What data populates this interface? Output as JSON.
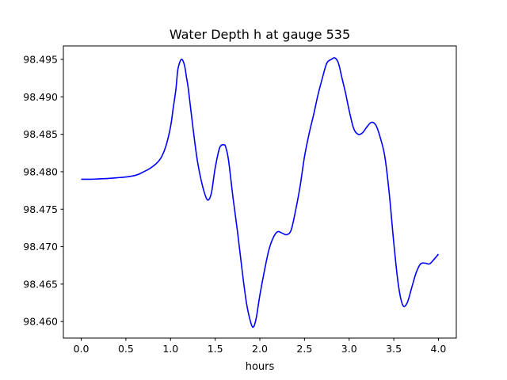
{
  "chart_data": {
    "type": "line",
    "title": "Water Depth h at gauge 535",
    "xlabel": "hours",
    "ylabel": "",
    "xlim": [
      -0.2,
      4.2
    ],
    "ylim": [
      98.4578,
      98.4968
    ],
    "x_ticks": [
      0.0,
      0.5,
      1.0,
      1.5,
      2.0,
      2.5,
      3.0,
      3.5,
      4.0
    ],
    "x_tick_labels": [
      "0.0",
      "0.5",
      "1.0",
      "1.5",
      "2.0",
      "2.5",
      "3.0",
      "3.5",
      "4.0"
    ],
    "y_ticks": [
      98.46,
      98.465,
      98.47,
      98.475,
      98.48,
      98.485,
      98.49,
      98.495
    ],
    "y_tick_labels": [
      "98.460",
      "98.465",
      "98.470",
      "98.475",
      "98.480",
      "98.485",
      "98.490",
      "98.495"
    ],
    "grid": false,
    "line_color": "#0000ff",
    "series": [
      {
        "x": [
          0.0,
          0.1,
          0.2,
          0.3,
          0.4,
          0.5,
          0.6,
          0.65,
          0.7,
          0.75,
          0.8,
          0.85,
          0.9,
          0.95,
          1.0,
          1.03,
          1.06,
          1.08,
          1.1,
          1.12,
          1.14,
          1.16,
          1.18,
          1.2,
          1.25,
          1.3,
          1.35,
          1.4,
          1.43,
          1.46,
          1.5,
          1.55,
          1.6,
          1.62,
          1.65,
          1.7,
          1.75,
          1.8,
          1.85,
          1.9,
          1.93,
          1.96,
          2.0,
          2.05,
          2.1,
          2.15,
          2.2,
          2.25,
          2.3,
          2.35,
          2.4,
          2.45,
          2.5,
          2.55,
          2.6,
          2.65,
          2.7,
          2.75,
          2.8,
          2.84,
          2.88,
          2.92,
          2.96,
          3.0,
          3.05,
          3.1,
          3.15,
          3.2,
          3.25,
          3.3,
          3.35,
          3.4,
          3.45,
          3.5,
          3.55,
          3.6,
          3.65,
          3.7,
          3.75,
          3.8,
          3.85,
          3.9,
          3.95,
          4.0
        ],
        "y": [
          98.479,
          98.479,
          98.47905,
          98.4791,
          98.4792,
          98.4793,
          98.4795,
          98.4797,
          98.48,
          98.4803,
          98.4807,
          98.4812,
          98.482,
          98.4835,
          98.486,
          98.4885,
          98.491,
          98.4935,
          98.4945,
          98.495,
          98.4948,
          98.494,
          98.4925,
          98.491,
          98.486,
          98.4815,
          98.4785,
          98.4765,
          98.4763,
          98.4773,
          98.4805,
          98.4832,
          98.4836,
          98.4832,
          98.4815,
          98.4765,
          98.472,
          98.467,
          98.4625,
          98.4598,
          98.4593,
          98.4605,
          98.4635,
          98.4667,
          98.4695,
          98.4712,
          98.472,
          98.4718,
          98.4716,
          98.4722,
          98.4748,
          98.478,
          98.482,
          98.485,
          98.4875,
          98.4902,
          98.4925,
          98.4945,
          98.495,
          98.4952,
          98.4945,
          98.4925,
          98.4905,
          98.4882,
          98.4858,
          98.485,
          98.4852,
          98.486,
          98.4866,
          98.4862,
          98.4845,
          98.482,
          98.477,
          98.4705,
          98.465,
          98.4622,
          98.4625,
          98.4645,
          98.4665,
          98.4677,
          98.4678,
          98.4677,
          98.4683,
          98.469
        ]
      }
    ]
  }
}
